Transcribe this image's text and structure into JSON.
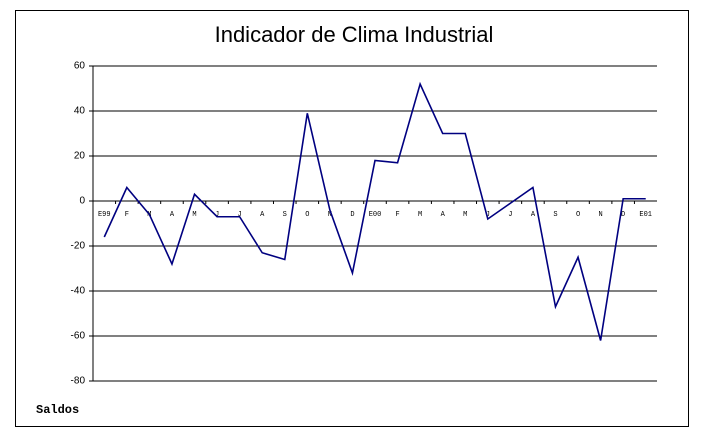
{
  "chart_data": {
    "type": "line",
    "title": "Indicador de Clima Industrial",
    "categories": [
      "E99",
      "F",
      "M",
      "A",
      "M",
      "J",
      "J",
      "A",
      "S",
      "O",
      "N",
      "D",
      "E00",
      "F",
      "M",
      "A",
      "M",
      "J",
      "J",
      "A",
      "S",
      "O",
      "N",
      "D",
      "E01"
    ],
    "series": [
      {
        "name": "Saldos",
        "color": "#000080",
        "values": [
          -16,
          6,
          -6,
          -28,
          3,
          -7,
          -7,
          -23,
          -26,
          39,
          -4,
          -32,
          18,
          17,
          52,
          30,
          30,
          -8,
          -1,
          6,
          -47,
          -25,
          -62,
          1,
          1
        ]
      }
    ],
    "ylim": [
      -80,
      60
    ],
    "yticks": [
      60,
      40,
      20,
      0,
      -20,
      -40,
      -60,
      -80
    ],
    "grid": true
  }
}
